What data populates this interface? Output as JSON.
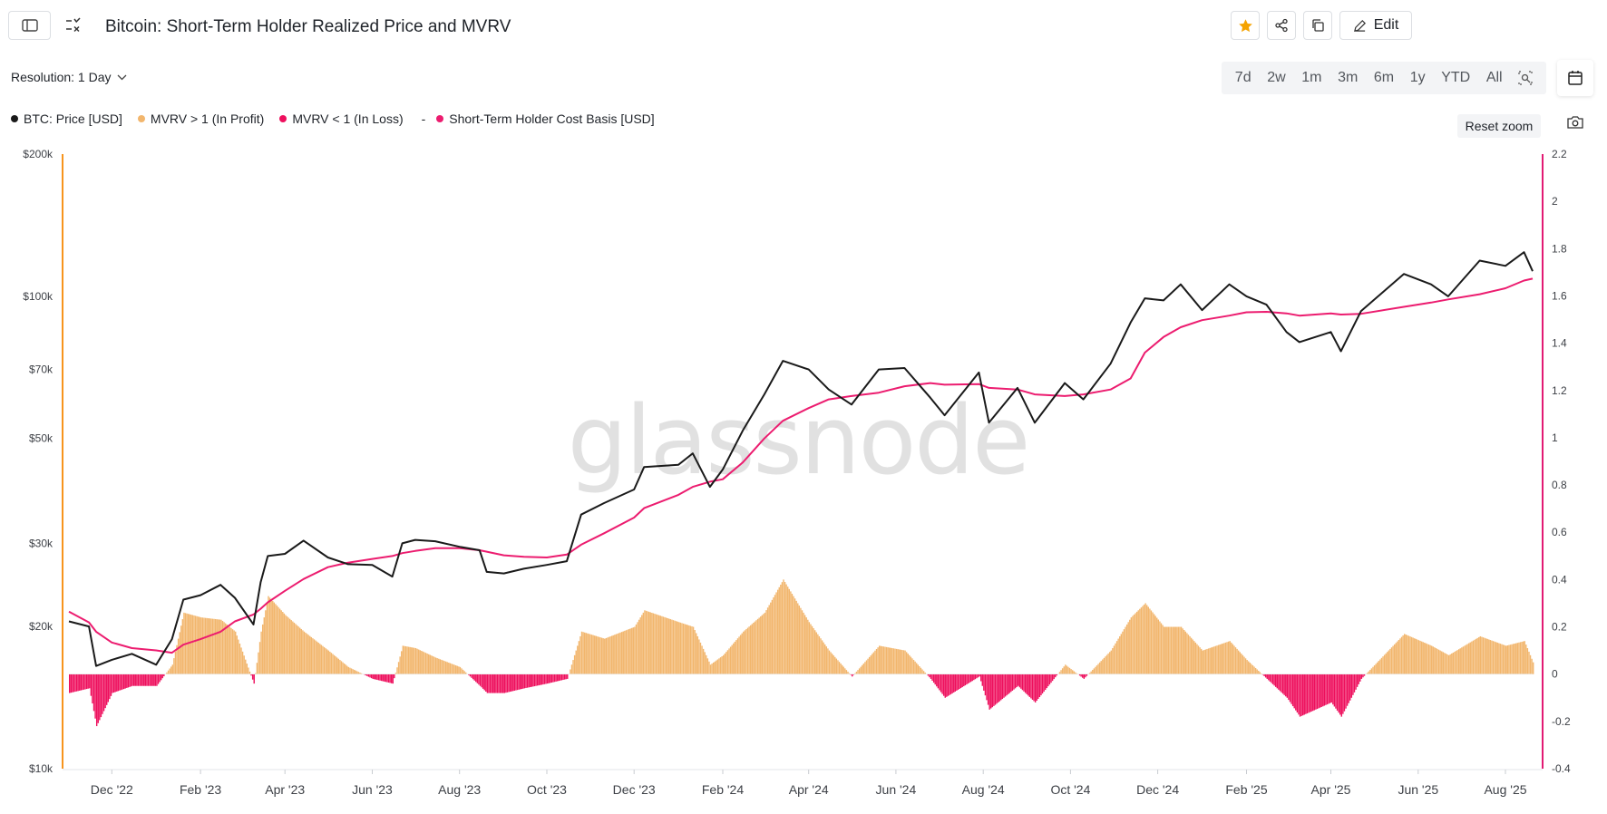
{
  "header": {
    "title": "Bitcoin: Short-Term Holder Realized Price and MVRV",
    "edit_label": "Edit",
    "resolution_label": "Resolution: 1 Day",
    "reset_zoom_label": "Reset zoom"
  },
  "ranges": [
    "7d",
    "2w",
    "1m",
    "3m",
    "6m",
    "1y",
    "YTD",
    "All"
  ],
  "colors": {
    "price": "#1a1a1a",
    "profit": "#f2b66d",
    "loss": "#ee0f5d",
    "cost_basis": "#ec1c6f",
    "left_axis": "#f7941d",
    "right_axis": "#e21a73",
    "star": "#f5a300"
  },
  "watermark": "glassnode",
  "chart_data": {
    "type": "line",
    "legend_position": "top-left",
    "legend": [
      "BTC: Price [USD]",
      "MVRV > 1 (In Profit)",
      "MVRV < 1 (In Loss)",
      "-",
      "Short-Term Holder Cost Basis [USD]"
    ],
    "x_ticks": [
      "Dec '22",
      "Feb '23",
      "Apr '23",
      "Jun '23",
      "Aug '23",
      "Oct '23",
      "Dec '23",
      "Feb '24",
      "Apr '24",
      "Jun '24",
      "Aug '24",
      "Oct '24",
      "Dec '24",
      "Feb '25",
      "Apr '25",
      "Jun '25",
      "Aug '25"
    ],
    "left_axis": {
      "scale": "log",
      "range": [
        10000,
        200000
      ],
      "ticks": [
        [
          10000,
          "$10k"
        ],
        [
          20000,
          "$20k"
        ],
        [
          30000,
          "$30k"
        ],
        [
          50000,
          "$50k"
        ],
        [
          70000,
          "$70k"
        ],
        [
          100000,
          "$100k"
        ],
        [
          200000,
          "$200k"
        ]
      ]
    },
    "right_axis": {
      "scale": "linear",
      "range": [
        -0.4,
        2.2
      ],
      "ticks": [
        "2.2",
        "2",
        "1.8",
        "1.6",
        "1.4",
        "1.2",
        "1",
        "0.8",
        "0.6",
        "0.4",
        "0.2",
        "0",
        "-0.2",
        "-0.4"
      ]
    },
    "x": [
      "2022-11-01",
      "2022-11-15",
      "2022-11-20",
      "2022-12-01",
      "2022-12-15",
      "2023-01-01",
      "2023-01-12",
      "2023-01-20",
      "2023-02-01",
      "2023-02-15",
      "2023-02-25",
      "2023-03-10",
      "2023-03-15",
      "2023-03-20",
      "2023-04-01",
      "2023-04-14",
      "2023-05-01",
      "2023-05-15",
      "2023-06-01",
      "2023-06-15",
      "2023-06-22",
      "2023-07-01",
      "2023-07-15",
      "2023-08-01",
      "2023-08-15",
      "2023-08-20",
      "2023-09-01",
      "2023-09-15",
      "2023-10-01",
      "2023-10-15",
      "2023-10-25",
      "2023-11-10",
      "2023-12-01",
      "2023-12-08",
      "2024-01-01",
      "2024-01-11",
      "2024-01-23",
      "2024-02-01",
      "2024-02-15",
      "2024-03-01",
      "2024-03-14",
      "2024-04-01",
      "2024-04-15",
      "2024-05-01",
      "2024-05-20",
      "2024-06-07",
      "2024-06-25",
      "2024-07-05",
      "2024-07-29",
      "2024-08-05",
      "2024-08-25",
      "2024-09-06",
      "2024-09-27",
      "2024-10-10",
      "2024-10-29",
      "2024-11-12",
      "2024-11-22",
      "2024-12-05",
      "2024-12-17",
      "2025-01-01",
      "2025-01-20",
      "2025-02-01",
      "2025-02-15",
      "2025-03-01",
      "2025-03-10",
      "2025-04-01",
      "2025-04-08",
      "2025-04-22",
      "2025-05-22",
      "2025-06-10",
      "2025-06-22",
      "2025-07-14",
      "2025-08-01",
      "2025-08-14",
      "2025-08-20"
    ],
    "series": [
      {
        "name": "BTC: Price [USD]",
        "axis": "left",
        "values": [
          20500,
          20000,
          16500,
          17000,
          17500,
          16600,
          18800,
          22800,
          23300,
          24500,
          23000,
          20200,
          24800,
          28200,
          28500,
          30400,
          28000,
          27100,
          27000,
          25500,
          30000,
          30500,
          30300,
          29500,
          29000,
          26100,
          25900,
          26500,
          27000,
          27500,
          34500,
          36500,
          39000,
          43500,
          44000,
          46500,
          39500,
          43000,
          52000,
          62000,
          73000,
          70000,
          63500,
          59000,
          70000,
          70500,
          61000,
          56000,
          69000,
          54000,
          64000,
          54000,
          65500,
          60500,
          72000,
          88000,
          99000,
          98000,
          106000,
          93500,
          106000,
          100000,
          96000,
          84000,
          80000,
          84000,
          76500,
          93000,
          111500,
          106000,
          100000,
          119000,
          116000,
          124000,
          113000
        ]
      },
      {
        "name": "Short-Term Holder Cost Basis [USD]",
        "axis": "left",
        "values": [
          21500,
          20400,
          19500,
          18500,
          18000,
          17800,
          17600,
          18300,
          18800,
          19500,
          20500,
          21200,
          21800,
          22500,
          23800,
          25200,
          26700,
          27300,
          27800,
          28200,
          28600,
          28900,
          29300,
          29300,
          29000,
          28800,
          28300,
          28100,
          28000,
          28400,
          29800,
          31500,
          34000,
          35600,
          38000,
          39500,
          40500,
          41000,
          44500,
          50000,
          54500,
          58000,
          60500,
          61500,
          62500,
          64500,
          65500,
          65000,
          65200,
          64000,
          63500,
          62000,
          61500,
          62000,
          63500,
          67000,
          76000,
          82000,
          86000,
          89000,
          91000,
          92500,
          92700,
          92000,
          91000,
          92000,
          91500,
          91800,
          95000,
          97000,
          98500,
          101000,
          104000,
          108000,
          109000
        ]
      },
      {
        "name": "MVRV",
        "axis": "right",
        "values": [
          -0.08,
          -0.06,
          -0.22,
          -0.08,
          -0.05,
          -0.05,
          0.04,
          0.26,
          0.24,
          0.23,
          0.18,
          -0.04,
          0.18,
          0.33,
          0.25,
          0.18,
          0.1,
          0.03,
          -0.02,
          -0.04,
          0.12,
          0.11,
          0.07,
          0.03,
          -0.05,
          -0.08,
          -0.08,
          -0.06,
          -0.04,
          -0.02,
          0.18,
          0.15,
          0.2,
          0.27,
          0.22,
          0.2,
          0.04,
          0.08,
          0.18,
          0.26,
          0.4,
          0.22,
          0.1,
          -0.01,
          0.12,
          0.1,
          -0.02,
          -0.1,
          -0.01,
          -0.15,
          -0.05,
          -0.12,
          0.04,
          -0.02,
          0.1,
          0.24,
          0.3,
          0.2,
          0.2,
          0.1,
          0.14,
          0.06,
          -0.02,
          -0.1,
          -0.18,
          -0.12,
          -0.18,
          -0.02,
          0.17,
          0.12,
          0.08,
          0.16,
          0.12,
          0.14,
          0.05
        ]
      }
    ]
  }
}
